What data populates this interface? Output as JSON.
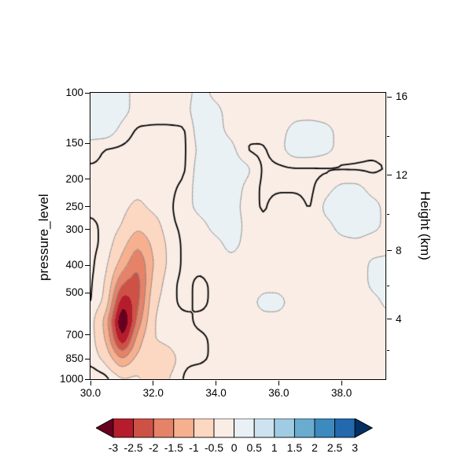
{
  "figure": {
    "x_axis": {
      "tick_labels": [
        "30.0",
        "32.0",
        "34.0",
        "36.0",
        "38.0"
      ],
      "tick_values": [
        30,
        32,
        34,
        36,
        38
      ],
      "range": [
        30,
        39.4
      ]
    },
    "y_axis": {
      "label": "pressure_level",
      "scale": "log",
      "tick_labels": [
        "100",
        "150",
        "200",
        "250",
        "300",
        "400",
        "500",
        "700",
        "850",
        "1000"
      ],
      "tick_values": [
        100,
        150,
        200,
        250,
        300,
        400,
        500,
        700,
        850,
        1000
      ],
      "range": [
        100,
        1000
      ]
    },
    "y2_axis": {
      "label": "Height (km)",
      "tick_labels": [
        "4",
        "8",
        "12",
        "16"
      ],
      "tick_pressures": [
        616.4,
        356.5,
        194.0,
        103.5
      ],
      "minor_tick_pressures": [
        795.0,
        472.2,
        265.0,
        141.7
      ]
    },
    "colorbar": {
      "tick_labels": [
        "-3",
        "-2.5",
        "-2",
        "-1.5",
        "-1",
        "-0.5",
        "0",
        "0.5",
        "1",
        "1.5",
        "2",
        "2.5",
        "3"
      ],
      "tick_values": [
        -3,
        -2.5,
        -2,
        -1.5,
        -1,
        -0.5,
        0,
        0.5,
        1,
        1.5,
        2,
        2.5,
        3
      ],
      "extend": "both",
      "colors": [
        "#67001f",
        "#b51d2d",
        "#ce5146",
        "#e58268",
        "#f6b090",
        "#fcd7c2",
        "#f9ede6",
        "#e9f1f4",
        "#cde3ef",
        "#9fcce2",
        "#6aacd0",
        "#3c8abe",
        "#2369ae",
        "#053061"
      ]
    }
  },
  "chart_data": {
    "type": "heatmap",
    "title": "",
    "xlabel": "",
    "ylabel": "pressure_level",
    "y2label": "Height (km)",
    "x_range": [
      30,
      39.4
    ],
    "fill_levels": [
      -3,
      -2.5,
      -2,
      -1.5,
      -1,
      -0.5,
      0,
      0.5,
      1,
      1.5,
      2,
      2.5,
      3
    ],
    "x": [
      30,
      30.5,
      31,
      31.5,
      32,
      32.5,
      33,
      33.5,
      34,
      34.5,
      35,
      35.5,
      36,
      36.5,
      37,
      37.5,
      38,
      38.5,
      39,
      39.5
    ],
    "pressure_levels": [
      100,
      117,
      136,
      158,
      185,
      215,
      251,
      293,
      342,
      398,
      464,
      541,
      631,
      736,
      858,
      1000
    ],
    "values": [
      [
        0.2,
        0.25,
        0.1,
        -0.1,
        -0.15,
        -0.15,
        -0.1,
        0.1,
        -0.1,
        -0.15,
        -0.15,
        -0.1,
        -0.15,
        -0.15,
        -0.15,
        -0.1,
        -0.15,
        -0.15,
        -0.15,
        -0.15
      ],
      [
        0.2,
        0.3,
        0.1,
        -0.1,
        -0.15,
        -0.15,
        -0.1,
        0.2,
        0.1,
        -0.15,
        -0.15,
        -0.15,
        -0.2,
        -0.1,
        -0.15,
        -0.15,
        -0.15,
        -0.15,
        -0.15,
        -0.15
      ],
      [
        0.1,
        0.2,
        -0.1,
        -0.3,
        -0.3,
        -0.3,
        -0.3,
        0.2,
        0.1,
        -0.1,
        -0.15,
        -0.15,
        -0.1,
        0.1,
        0.2,
        0.1,
        -0.1,
        -0.15,
        -0.15,
        -0.15
      ],
      [
        -0.1,
        -0.3,
        -0.3,
        -0.35,
        -0.35,
        -0.3,
        -0.3,
        0.1,
        0.2,
        0.1,
        -0.3,
        -0.3,
        -0.1,
        0.2,
        0.2,
        0.1,
        -0.1,
        -0.15,
        -0.2,
        -0.15
      ],
      [
        -0.3,
        -0.3,
        -0.35,
        -0.35,
        -0.35,
        -0.3,
        -0.3,
        0.2,
        0.3,
        0.2,
        0.1,
        -0.3,
        -0.3,
        -0.3,
        -0.3,
        -0.3,
        -0.3,
        -0.3,
        -0.3,
        -0.25
      ],
      [
        -0.3,
        -0.3,
        -0.35,
        -0.4,
        -0.35,
        -0.3,
        -0.2,
        0.2,
        0.3,
        0.2,
        -0.1,
        -0.3,
        -0.3,
        -0.3,
        -0.3,
        -0.1,
        0.1,
        0.1,
        -0.1,
        -0.1
      ],
      [
        -0.3,
        -0.3,
        -0.4,
        -0.6,
        -0.4,
        -0.3,
        -0.1,
        0.1,
        0.2,
        0.1,
        -0.1,
        -0.3,
        -0.1,
        -0.1,
        -0.3,
        0.1,
        0.2,
        0.1,
        0.1,
        -0.1
      ],
      [
        -0.2,
        -0.3,
        -0.5,
        -0.9,
        -0.7,
        -0.3,
        -0.2,
        -0.1,
        0.1,
        0.2,
        -0.1,
        -0.2,
        -0.2,
        -0.2,
        -0.1,
        -0.1,
        0.1,
        0.2,
        0.1,
        -0.1
      ],
      [
        -0.2,
        -0.3,
        -0.8,
        -1.5,
        -0.9,
        -0.4,
        -0.2,
        -0.1,
        -0.1,
        0.1,
        -0.1,
        -0.2,
        -0.2,
        -0.2,
        -0.2,
        -0.1,
        -0.1,
        -0.1,
        -0.2,
        -0.1
      ],
      [
        -0.2,
        -0.4,
        -1.2,
        -2,
        -1,
        -0.4,
        -0.2,
        -0.2,
        -0.1,
        -0.1,
        -0.2,
        -0.2,
        -0.2,
        -0.2,
        -0.2,
        -0.1,
        -0.1,
        -0.2,
        0.1,
        0.1
      ],
      [
        -0.2,
        -0.5,
        -2,
        -2.3,
        -0.8,
        -0.3,
        -0.2,
        -0.3,
        -0.2,
        -0.1,
        -0.2,
        -0.1,
        -0.1,
        -0.2,
        -0.2,
        -0.2,
        -0.1,
        -0.2,
        0.1,
        0.1
      ],
      [
        -0.2,
        -0.6,
        -3,
        -2.2,
        -0.6,
        -0.3,
        -0.2,
        -0.3,
        -0.2,
        -0.2,
        -0.1,
        0.1,
        0.1,
        -0.1,
        -0.2,
        -0.2,
        -0.2,
        -0.2,
        -0.1,
        0.1
      ],
      [
        -0.3,
        -1.2,
        -3.8,
        -1.8,
        -0.5,
        -0.3,
        -0.3,
        -0.2,
        -0.2,
        -0.2,
        -0.2,
        -0.1,
        -0.1,
        -0.2,
        -0.2,
        -0.2,
        -0.1,
        -0.2,
        -0.2,
        -0.1
      ],
      [
        -0.3,
        -1,
        -3,
        -1.2,
        -0.5,
        -0.4,
        -0.3,
        -0.3,
        -0.2,
        -0.2,
        -0.2,
        -0.2,
        -0.1,
        -0.2,
        -0.2,
        -0.2,
        -0.2,
        -0.2,
        -0.2,
        -0.2
      ],
      [
        -0.3,
        -0.6,
        -1.5,
        -0.8,
        -0.9,
        -0.7,
        -0.3,
        -0.3,
        -0.2,
        -0.2,
        -0.2,
        -0.2,
        -0.2,
        -0.2,
        -0.1,
        -0.2,
        -0.2,
        -0.2,
        -0.2,
        -0.2
      ],
      [
        -0.1,
        -0.15,
        -0.4,
        -0.4,
        -0.7,
        -0.5,
        -0.2,
        -0.1,
        -0.1,
        -0.1,
        -0.1,
        -0.1,
        -0.1,
        -0.1,
        -0.1,
        -0.1,
        -0.1,
        -0.1,
        -0.1,
        -0.1
      ]
    ],
    "contour_lines": {
      "gray_levels": [
        -2,
        -1.5,
        -1,
        -0.5,
        0
      ],
      "gray_color": "#888888",
      "black_level": -0.25,
      "black_color": "#000000"
    }
  }
}
